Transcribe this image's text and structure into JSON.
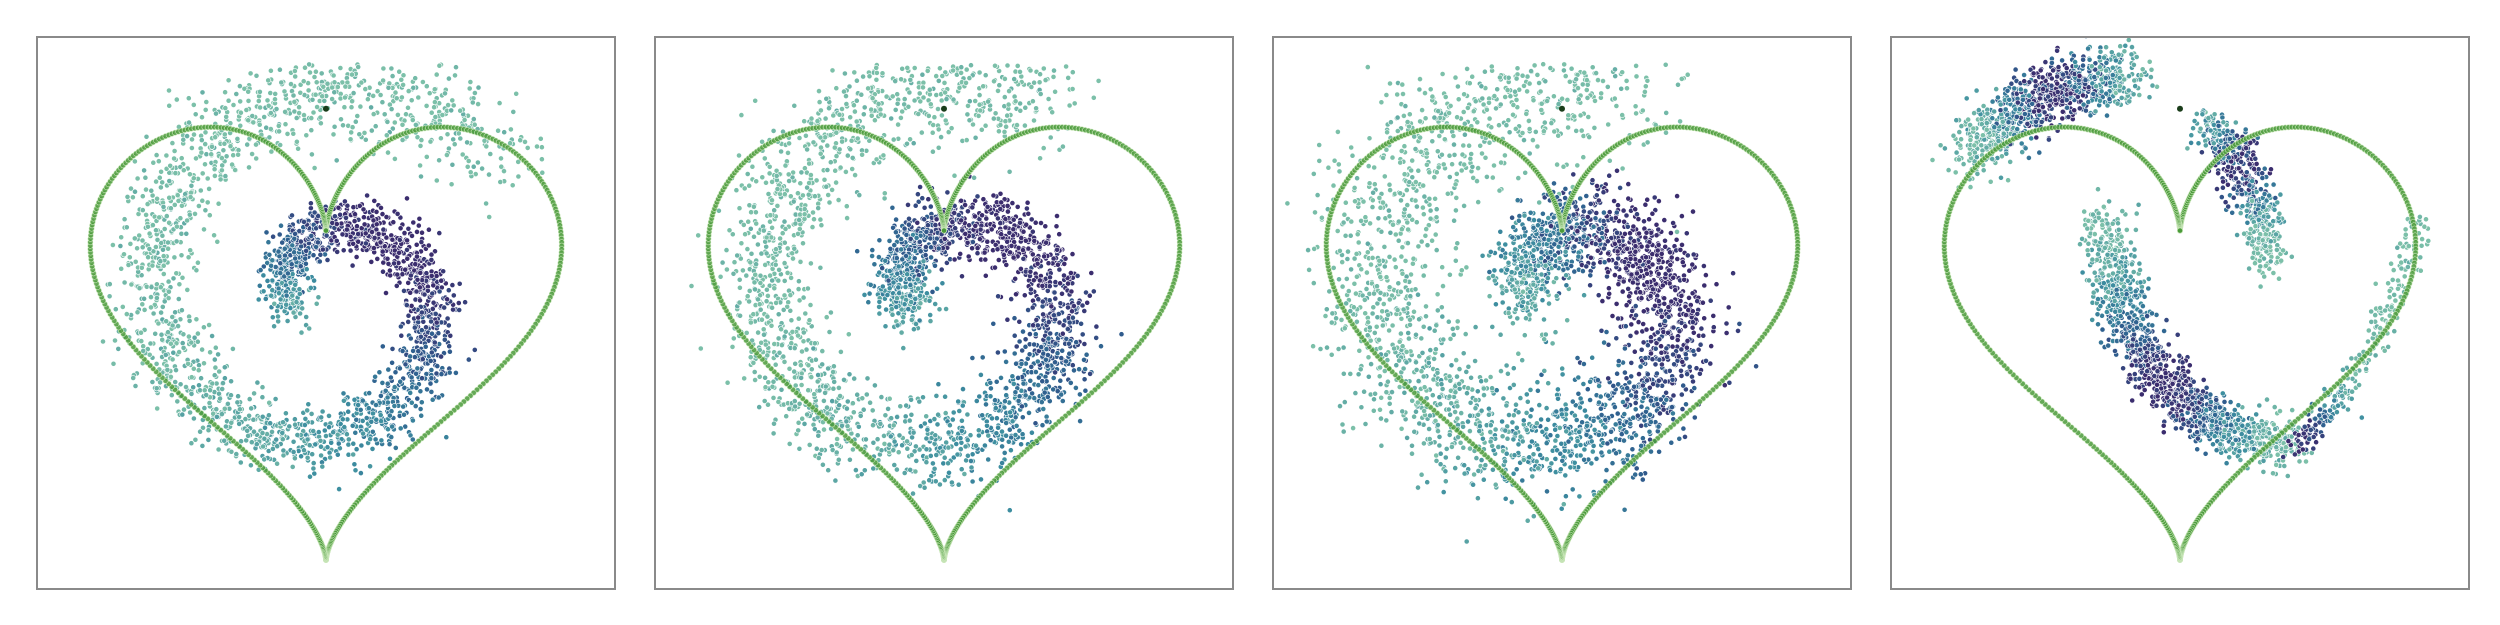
{
  "chart_data": [
    {
      "type": "scatter",
      "title": "",
      "xlabel": "",
      "ylabel": "",
      "grid": false,
      "legend": "none",
      "boundary": {
        "shape": "heart",
        "color": "#4a9a3a"
      },
      "cusp_marker": {
        "x": 0.0,
        "y": 0.78
      },
      "colormap": [
        "#3b2d6e",
        "#2f5f8f",
        "#3d8ea0",
        "#7cc0a9"
      ],
      "spiral": {
        "turns": 1.45,
        "start_angle_deg": 200,
        "density_peak": 0.3,
        "width": 0.065,
        "points": 2600,
        "seed": 11
      },
      "series": [
        {
          "x": [
            -0.05,
            -0.3,
            -0.45,
            -0.42,
            -0.2,
            0.1,
            0.38,
            0.5,
            0.45,
            0.2
          ],
          "y": [
            0.05,
            0.25,
            0.55,
            0.7,
            0.78,
            0.72,
            0.55,
            0.2,
            -0.3,
            -0.7
          ]
        }
      ]
    },
    {
      "type": "scatter",
      "title": "",
      "xlabel": "",
      "ylabel": "",
      "grid": false,
      "legend": "none",
      "boundary": {
        "shape": "heart",
        "color": "#4a9a3a"
      },
      "cusp_marker": {
        "x": 0.0,
        "y": 0.78
      },
      "colormap": [
        "#3b2d6e",
        "#2f5f8f",
        "#3d8ea0",
        "#7cc0a9"
      ],
      "spiral": {
        "turns": 1.4,
        "start_angle_deg": 205,
        "density_peak": 0.32,
        "width": 0.08,
        "points": 2800,
        "seed": 23
      },
      "series": [
        {
          "x": [
            0.05,
            -0.25,
            -0.45,
            -0.4,
            -0.15,
            0.15,
            0.4,
            0.5,
            0.42,
            0.15
          ],
          "y": [
            0.1,
            0.3,
            0.58,
            0.72,
            0.78,
            0.7,
            0.52,
            0.15,
            -0.35,
            -0.72
          ]
        }
      ]
    },
    {
      "type": "scatter",
      "title": "",
      "xlabel": "",
      "ylabel": "",
      "grid": false,
      "legend": "none",
      "boundary": {
        "shape": "heart",
        "color": "#4a9a3a"
      },
      "cusp_marker": {
        "x": 0.0,
        "y": 0.78
      },
      "colormap": [
        "#3b2d6e",
        "#2f5f8f",
        "#3d8ea0",
        "#7cc0a9"
      ],
      "spiral": {
        "turns": 1.3,
        "start_angle_deg": 180,
        "density_peak": 0.35,
        "width": 0.11,
        "points": 3000,
        "seed": 37
      },
      "series": [
        {
          "x": [
            -0.05,
            -0.35,
            -0.5,
            -0.4,
            -0.1,
            0.25,
            0.5,
            0.4,
            0.1,
            -0.2
          ],
          "y": [
            0.1,
            0.4,
            0.7,
            0.75,
            0.72,
            0.68,
            0.45,
            -0.05,
            -0.35,
            -0.4
          ]
        }
      ]
    },
    {
      "type": "scatter",
      "title": "",
      "xlabel": "",
      "ylabel": "",
      "grid": false,
      "legend": "none",
      "boundary": {
        "shape": "heart",
        "color": "#4a9a3a"
      },
      "cusp_marker": {
        "x": 0.0,
        "y": 0.78
      },
      "colormap": [
        "#3b2d6e",
        "#2f5f8f",
        "#3d8ea0",
        "#7cc0a9"
      ],
      "clusters": [
        {
          "from": [
            -0.85,
            0.6
          ],
          "via": [
            -0.55,
            0.9
          ],
          "to": [
            -0.2,
            0.9
          ],
          "width": 0.06,
          "points": 900,
          "peak": 0.55,
          "seed": 41
        },
        {
          "from": [
            0.1,
            0.72
          ],
          "via": [
            0.3,
            0.55
          ],
          "to": [
            0.35,
            0.2
          ],
          "width": 0.045,
          "points": 500,
          "peak": 0.4,
          "seed": 43
        },
        {
          "from": [
            -0.3,
            0.35
          ],
          "via": [
            -0.2,
            -0.45
          ],
          "to": [
            0.45,
            -0.5
          ],
          "width": 0.05,
          "points": 1300,
          "peak": 0.5,
          "seed": 47
        },
        {
          "from": [
            0.45,
            -0.5
          ],
          "via": [
            0.75,
            -0.3
          ],
          "to": [
            0.95,
            0.35
          ],
          "width": 0.03,
          "points": 250,
          "peak": 0.0,
          "seed": 53
        }
      ],
      "series": [
        {
          "x": [
            -0.85,
            -0.55,
            -0.2,
            0.1,
            0.3,
            -0.3,
            -0.2,
            0.45,
            0.75,
            0.95
          ],
          "y": [
            0.6,
            0.9,
            0.9,
            0.72,
            0.2,
            0.35,
            -0.45,
            -0.5,
            -0.3,
            0.35
          ]
        }
      ]
    }
  ]
}
